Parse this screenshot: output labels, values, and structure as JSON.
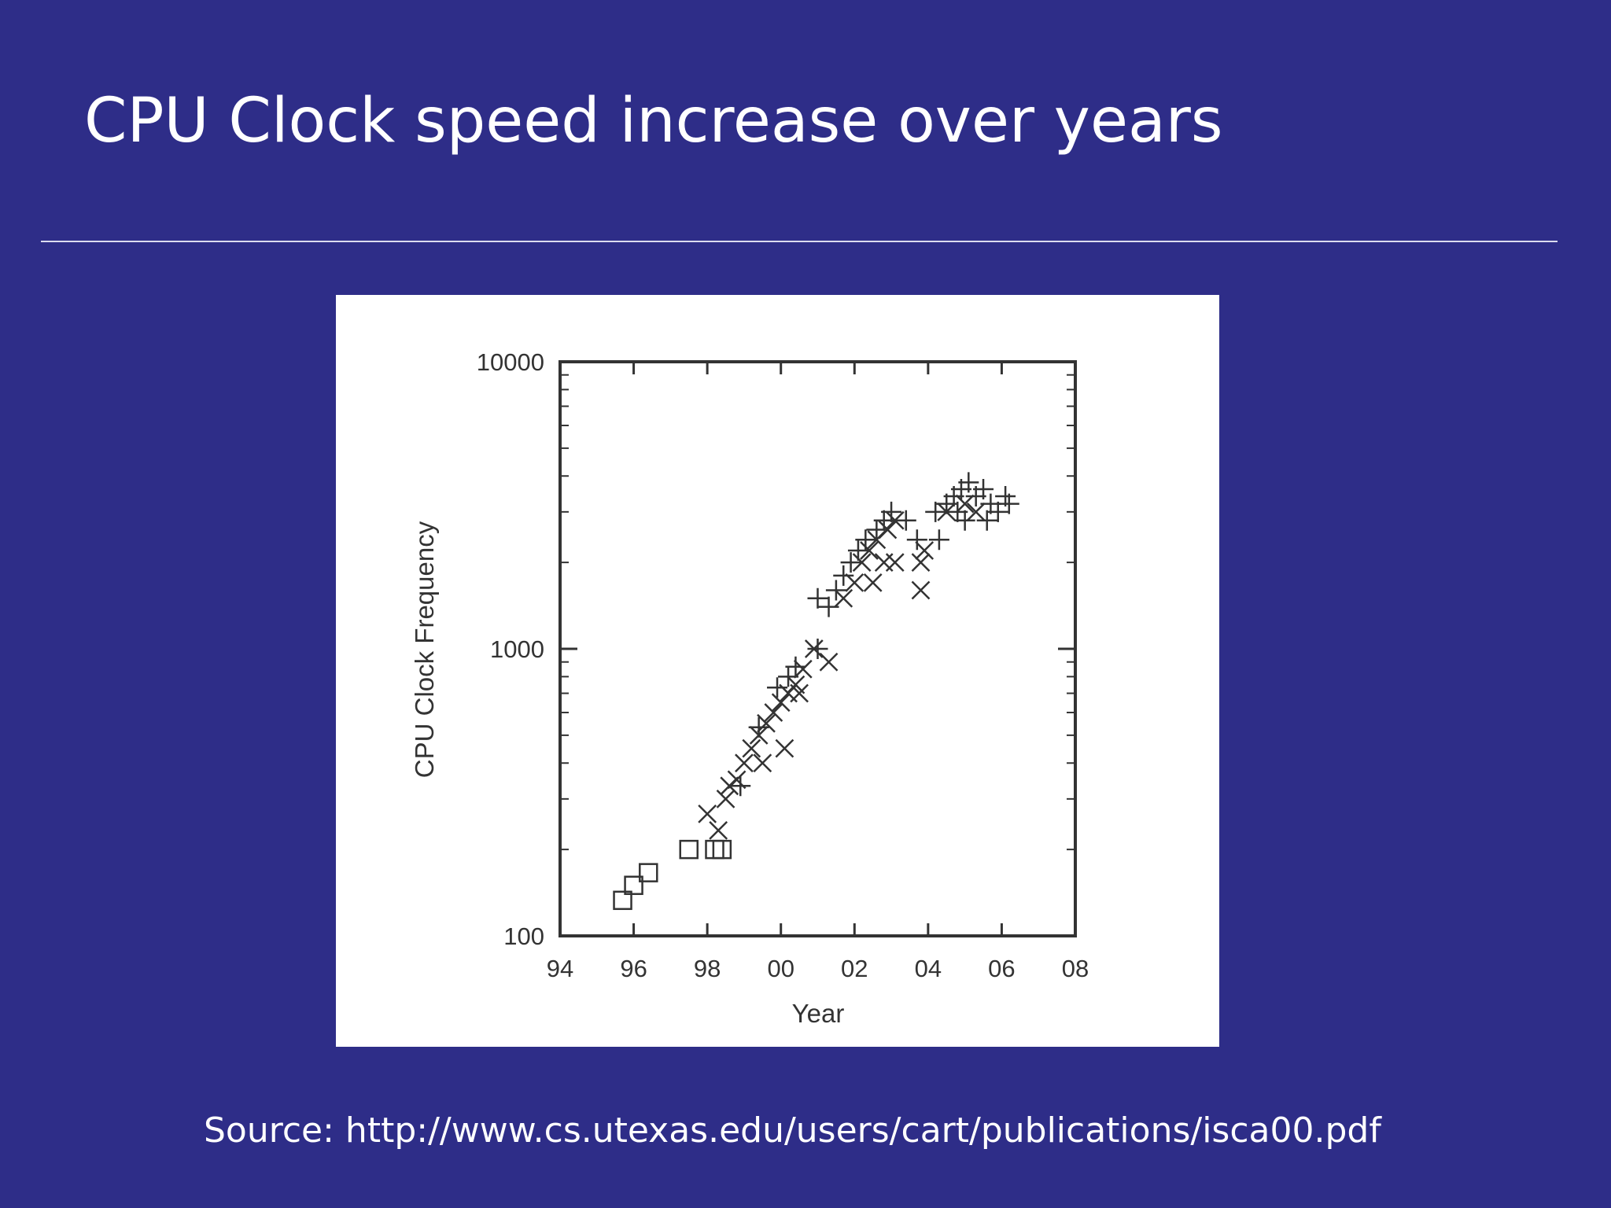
{
  "slide": {
    "title": "CPU Clock speed increase over years",
    "source": "Source: http://www.cs.utexas.edu/users/cart/publications/isca00.pdf"
  },
  "colors": {
    "background": "#2e2d88",
    "text": "#ffffff",
    "chart_background": "#ffffff",
    "marker": "#333333"
  },
  "chart_data": {
    "type": "scatter",
    "title": "",
    "xlabel": "Year",
    "ylabel": "CPU Clock Frequency",
    "xlim": [
      1994,
      2008
    ],
    "ylim": [
      100,
      10000
    ],
    "yscale": "log",
    "grid": false,
    "x_ticks": [
      {
        "value": 1994,
        "label": "94"
      },
      {
        "value": 1996,
        "label": "96"
      },
      {
        "value": 1998,
        "label": "98"
      },
      {
        "value": 2000,
        "label": "00"
      },
      {
        "value": 2002,
        "label": "02"
      },
      {
        "value": 2004,
        "label": "04"
      },
      {
        "value": 2006,
        "label": "06"
      },
      {
        "value": 2008,
        "label": "08"
      }
    ],
    "y_ticks": [
      {
        "value": 100,
        "label": "100"
      },
      {
        "value": 1000,
        "label": "1000"
      },
      {
        "value": 10000,
        "label": "10000"
      }
    ],
    "series": [
      {
        "marker": "square",
        "points": [
          [
            1995.7,
            133
          ],
          [
            1996.0,
            150
          ],
          [
            1996.4,
            166
          ],
          [
            1997.5,
            200
          ],
          [
            1998.2,
            200
          ],
          [
            1998.4,
            200
          ]
        ]
      },
      {
        "marker": "x",
        "points": [
          [
            1998.0,
            266
          ],
          [
            1998.3,
            233
          ],
          [
            1998.5,
            300
          ],
          [
            1998.6,
            333
          ],
          [
            1998.8,
            350
          ],
          [
            1999.0,
            400
          ],
          [
            1999.2,
            450
          ],
          [
            1999.4,
            500
          ],
          [
            1999.6,
            550
          ],
          [
            1999.5,
            400
          ],
          [
            1999.8,
            600
          ],
          [
            2000.0,
            650
          ],
          [
            2000.2,
            700
          ],
          [
            2000.4,
            750
          ],
          [
            2000.5,
            700
          ],
          [
            2000.6,
            850
          ],
          [
            2000.9,
            1000
          ],
          [
            2000.1,
            450
          ],
          [
            2001.3,
            900
          ],
          [
            2001.7,
            1500
          ],
          [
            2002.0,
            1700
          ],
          [
            2002.2,
            2000
          ],
          [
            2002.4,
            2200
          ],
          [
            2002.6,
            2400
          ],
          [
            2002.9,
            2600
          ],
          [
            2003.1,
            2800
          ],
          [
            2002.5,
            1700
          ],
          [
            2002.8,
            2000
          ],
          [
            2003.1,
            2000
          ],
          [
            2003.8,
            1600
          ],
          [
            2003.8,
            2000
          ],
          [
            2003.9,
            2200
          ],
          [
            2004.5,
            3000
          ],
          [
            2005.0,
            3200
          ],
          [
            2005.3,
            3000
          ]
        ]
      },
      {
        "marker": "plus",
        "points": [
          [
            1998.9,
            333
          ],
          [
            1999.4,
            533
          ],
          [
            1999.9,
            733
          ],
          [
            2000.2,
            800
          ],
          [
            2000.4,
            866
          ],
          [
            2001.0,
            1000
          ],
          [
            2001.0,
            1500
          ],
          [
            2001.3,
            1400
          ],
          [
            2001.5,
            1600
          ],
          [
            2001.7,
            1800
          ],
          [
            2001.9,
            2000
          ],
          [
            2002.1,
            2200
          ],
          [
            2002.3,
            2400
          ],
          [
            2002.6,
            2600
          ],
          [
            2002.8,
            2800
          ],
          [
            2003.0,
            3000
          ],
          [
            2003.4,
            2800
          ],
          [
            2003.7,
            2400
          ],
          [
            2004.3,
            2400
          ],
          [
            2004.2,
            3000
          ],
          [
            2004.5,
            3200
          ],
          [
            2004.7,
            3400
          ],
          [
            2004.9,
            3600
          ],
          [
            2005.1,
            3800
          ],
          [
            2005.3,
            3400
          ],
          [
            2005.5,
            3600
          ],
          [
            2005.7,
            3200
          ],
          [
            2005.9,
            3000
          ],
          [
            2006.1,
            3400
          ],
          [
            2005.0,
            2800
          ],
          [
            2005.6,
            2800
          ],
          [
            2006.2,
            3200
          ],
          [
            2004.8,
            3000
          ]
        ]
      }
    ]
  }
}
